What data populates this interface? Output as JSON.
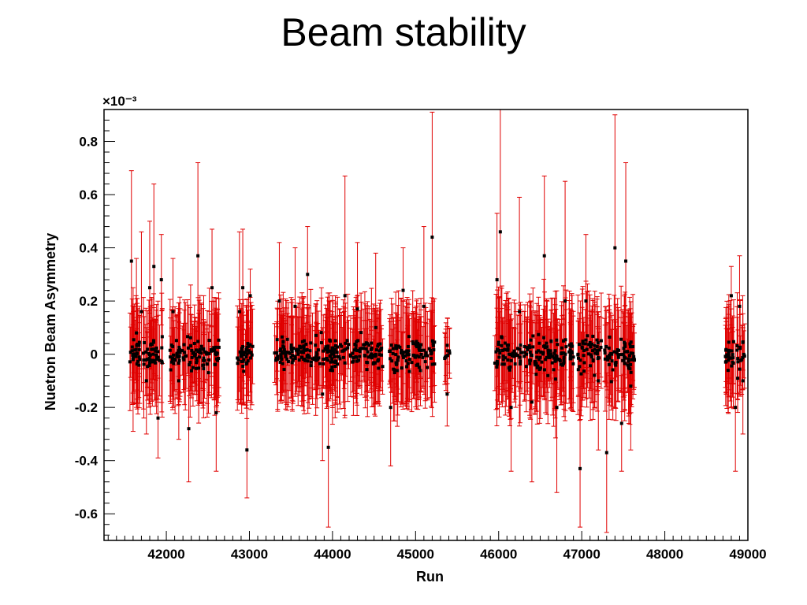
{
  "slide": {
    "title": "Beam stability"
  },
  "chart_data": {
    "type": "scatter",
    "xlabel": "Run",
    "ylabel": "Nuetron Beam Asymmetry",
    "y_multiplier_label": "×10⁻³",
    "xlim": [
      41250,
      49000
    ],
    "ylim": [
      -0.7,
      0.92
    ],
    "x_ticks": [
      42000,
      43000,
      44000,
      45000,
      46000,
      47000,
      48000,
      49000
    ],
    "y_ticks": [
      -0.6,
      -0.4,
      -0.2,
      0,
      0.2,
      0.4,
      0.6,
      0.8
    ],
    "y_tick_labels": [
      "-0.6",
      "-0.4",
      "-0.2",
      "0",
      "0.2",
      "0.4",
      "0.6",
      "0.8"
    ],
    "x_tick_labels": [
      "42000",
      "43000",
      "44000",
      "45000",
      "46000",
      "47000",
      "48000",
      "49000"
    ],
    "grid": false,
    "legend": "none",
    "colors": {
      "marker": "#000000",
      "errorbar": "#e00000"
    },
    "series": [
      {
        "errorbar_convention": "symmetric; err is half-length of red error bar",
        "points": [
          {
            "x": 41580,
            "y": 0.35,
            "err": 0.34
          },
          {
            "x": 41600,
            "y": -0.02,
            "err": 0.27
          },
          {
            "x": 41640,
            "y": 0.08,
            "err": 0.28
          },
          {
            "x": 41700,
            "y": 0.16,
            "err": 0.3
          },
          {
            "x": 41760,
            "y": -0.1,
            "err": 0.2
          },
          {
            "x": 41800,
            "y": 0.25,
            "err": 0.25
          },
          {
            "x": 41850,
            "y": 0.33,
            "err": 0.31
          },
          {
            "x": 41900,
            "y": -0.24,
            "err": 0.15
          },
          {
            "x": 41940,
            "y": 0.28,
            "err": 0.17
          },
          {
            "x": 42080,
            "y": 0.16,
            "err": 0.2
          },
          {
            "x": 42150,
            "y": -0.1,
            "err": 0.22
          },
          {
            "x": 42270,
            "y": -0.28,
            "err": 0.2
          },
          {
            "x": 42380,
            "y": 0.37,
            "err": 0.35
          },
          {
            "x": 42450,
            "y": 0.02,
            "err": 0.2
          },
          {
            "x": 42550,
            "y": 0.25,
            "err": 0.22
          },
          {
            "x": 42600,
            "y": -0.22,
            "err": 0.22
          },
          {
            "x": 42880,
            "y": 0.16,
            "err": 0.3
          },
          {
            "x": 42920,
            "y": 0.25,
            "err": 0.22
          },
          {
            "x": 42970,
            "y": -0.36,
            "err": 0.18
          },
          {
            "x": 43010,
            "y": 0.22,
            "err": 0.1
          },
          {
            "x": 43360,
            "y": 0.2,
            "err": 0.22
          },
          {
            "x": 43550,
            "y": 0.18,
            "err": 0.22
          },
          {
            "x": 43700,
            "y": 0.3,
            "err": 0.18
          },
          {
            "x": 43880,
            "y": -0.15,
            "err": 0.25
          },
          {
            "x": 43950,
            "y": -0.35,
            "err": 0.3
          },
          {
            "x": 44150,
            "y": 0.22,
            "err": 0.45
          },
          {
            "x": 44300,
            "y": 0.17,
            "err": 0.25
          },
          {
            "x": 44520,
            "y": 0.1,
            "err": 0.28
          },
          {
            "x": 44700,
            "y": -0.2,
            "err": 0.22
          },
          {
            "x": 44850,
            "y": 0.24,
            "err": 0.16
          },
          {
            "x": 45100,
            "y": 0.18,
            "err": 0.3
          },
          {
            "x": 45200,
            "y": 0.44,
            "err": 0.47
          },
          {
            "x": 45380,
            "y": -0.15,
            "err": 0.12
          },
          {
            "x": 45980,
            "y": 0.28,
            "err": 0.25
          },
          {
            "x": 46020,
            "y": 0.46,
            "err": 0.46
          },
          {
            "x": 46150,
            "y": -0.2,
            "err": 0.24
          },
          {
            "x": 46250,
            "y": 0.16,
            "err": 0.43
          },
          {
            "x": 46400,
            "y": -0.18,
            "err": 0.3
          },
          {
            "x": 46550,
            "y": 0.37,
            "err": 0.3
          },
          {
            "x": 46700,
            "y": -0.2,
            "err": 0.32
          },
          {
            "x": 46800,
            "y": 0.2,
            "err": 0.45
          },
          {
            "x": 46980,
            "y": -0.43,
            "err": 0.22
          },
          {
            "x": 47050,
            "y": 0.2,
            "err": 0.25
          },
          {
            "x": 47200,
            "y": -0.1,
            "err": 0.26
          },
          {
            "x": 47300,
            "y": -0.37,
            "err": 0.3
          },
          {
            "x": 47400,
            "y": 0.4,
            "err": 0.5
          },
          {
            "x": 47480,
            "y": -0.26,
            "err": 0.18
          },
          {
            "x": 47530,
            "y": 0.35,
            "err": 0.37
          },
          {
            "x": 47590,
            "y": -0.12,
            "err": 0.24
          },
          {
            "x": 48800,
            "y": 0.22,
            "err": 0.11
          },
          {
            "x": 48850,
            "y": -0.2,
            "err": 0.24
          },
          {
            "x": 48900,
            "y": 0.18,
            "err": 0.19
          },
          {
            "x": 48940,
            "y": -0.1,
            "err": 0.2
          }
        ],
        "dense_clusters": [
          {
            "x_start": 41560,
            "x_end": 41960,
            "y_center": 0.0,
            "y_spread": 0.06,
            "err_typical": 0.14
          },
          {
            "x_start": 42040,
            "x_end": 42640,
            "y_center": 0.0,
            "y_spread": 0.06,
            "err_typical": 0.14
          },
          {
            "x_start": 42830,
            "x_end": 43040,
            "y_center": 0.0,
            "y_spread": 0.06,
            "err_typical": 0.14
          },
          {
            "x_start": 43300,
            "x_end": 44620,
            "y_center": 0.0,
            "y_spread": 0.06,
            "err_typical": 0.14
          },
          {
            "x_start": 44680,
            "x_end": 45230,
            "y_center": 0.0,
            "y_spread": 0.06,
            "err_typical": 0.14
          },
          {
            "x_start": 45350,
            "x_end": 45410,
            "y_center": 0.0,
            "y_spread": 0.05,
            "err_typical": 0.1
          },
          {
            "x_start": 45950,
            "x_end": 46920,
            "y_center": 0.0,
            "y_spread": 0.07,
            "err_typical": 0.15
          },
          {
            "x_start": 46950,
            "x_end": 47640,
            "y_center": 0.0,
            "y_spread": 0.07,
            "err_typical": 0.15
          },
          {
            "x_start": 48730,
            "x_end": 48970,
            "y_center": 0.0,
            "y_spread": 0.06,
            "err_typical": 0.14
          }
        ]
      }
    ]
  }
}
